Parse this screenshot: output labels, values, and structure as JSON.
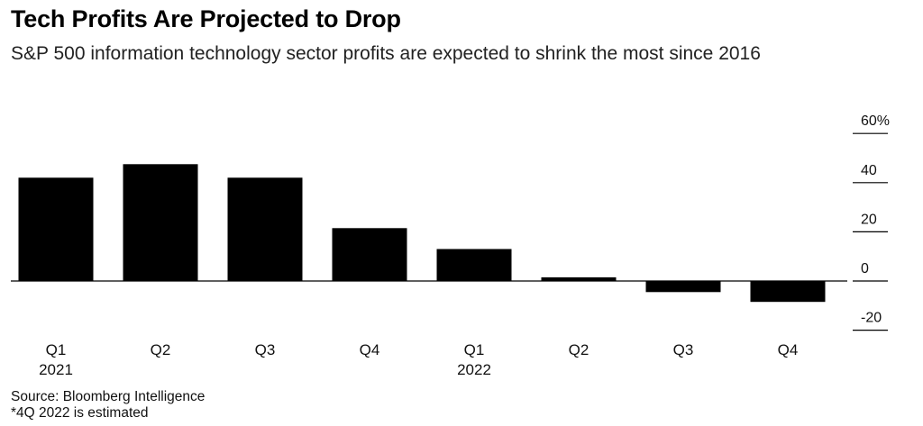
{
  "chart_data": {
    "type": "bar",
    "title": "Tech Profits Are Projected to Drop",
    "subtitle": "S&P 500 information technology sector profits are expected to shrink the most since 2016",
    "categories": [
      {
        "label": "Q1",
        "year": "2021"
      },
      {
        "label": "Q2",
        "year": ""
      },
      {
        "label": "Q3",
        "year": ""
      },
      {
        "label": "Q4",
        "year": ""
      },
      {
        "label": "Q1",
        "year": "2022"
      },
      {
        "label": "Q2",
        "year": ""
      },
      {
        "label": "Q3",
        "year": ""
      },
      {
        "label": "Q4",
        "year": ""
      }
    ],
    "values": [
      42,
      47.5,
      42,
      21.5,
      13,
      1.5,
      -4.5,
      -8.5
    ],
    "ylim": [
      -20,
      60
    ],
    "yticks": [
      {
        "value": 60,
        "label": "60%"
      },
      {
        "value": 40,
        "label": "40"
      },
      {
        "value": 20,
        "label": "20"
      },
      {
        "value": 0,
        "label": "0"
      },
      {
        "value": -20,
        "label": "-20"
      }
    ],
    "bar_color": "#000000",
    "grid": false
  },
  "notes": {
    "source": "Source: Bloomberg Intelligence",
    "footnote": "*4Q 2022 is estimated"
  }
}
